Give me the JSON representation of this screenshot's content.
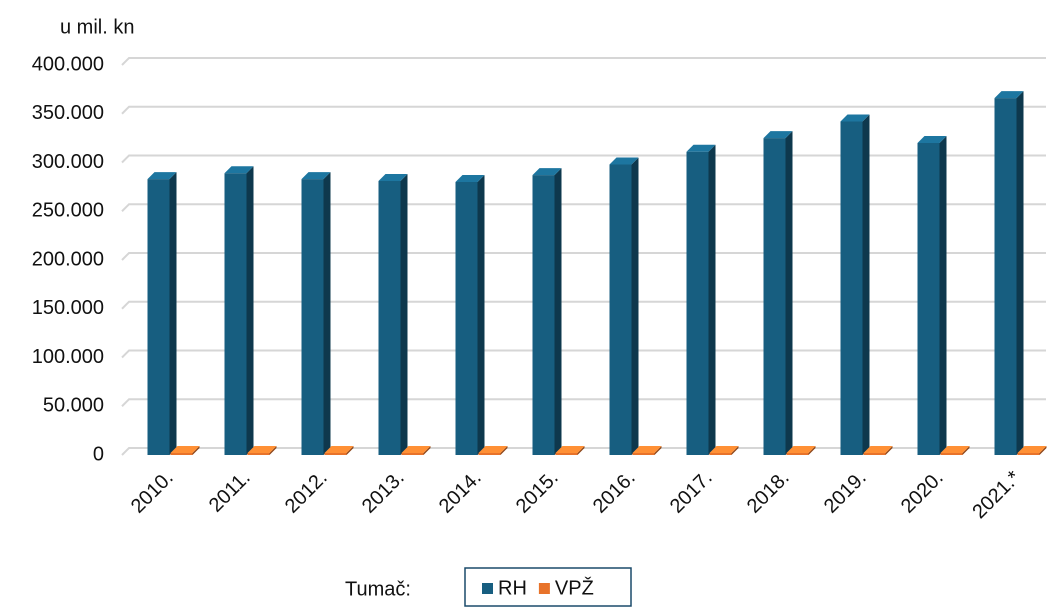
{
  "chart_data": {
    "type": "bar3d",
    "y_axis_label": "u mil. kn",
    "categories": [
      "2010.",
      "2011.",
      "2012.",
      "2013.",
      "2014.",
      "2015.",
      "2016.",
      "2017.",
      "2018.",
      "2019.",
      "2020.",
      "2021.*"
    ],
    "series": [
      {
        "name": "RH",
        "color": "#175e80",
        "values": [
          283000,
          289000,
          283000,
          281000,
          280000,
          287000,
          298000,
          311000,
          325000,
          342000,
          320000,
          366000
        ]
      },
      {
        "name": "VPŽ",
        "color": "#e8732a",
        "values": [
          2000,
          2000,
          2000,
          2000,
          2000,
          2000,
          2000,
          2000,
          2000,
          2000,
          2000,
          2000
        ]
      }
    ],
    "ylim": [
      0,
      400000
    ],
    "yticks": [
      0,
      {
        "value": 50000,
        "label": "50.000"
      },
      {
        "value": 100000,
        "label": "100.000"
      },
      {
        "value": 150000,
        "label": "150.000"
      },
      {
        "value": 200000,
        "label": "200.000"
      },
      {
        "value": 250000,
        "label": "250.000"
      },
      {
        "value": 300000,
        "label": "300.000"
      },
      {
        "value": 350000,
        "label": "350.000"
      },
      {
        "value": 400000,
        "label": "400.000"
      }
    ],
    "grid": true,
    "legend_title": "Tumač:"
  }
}
